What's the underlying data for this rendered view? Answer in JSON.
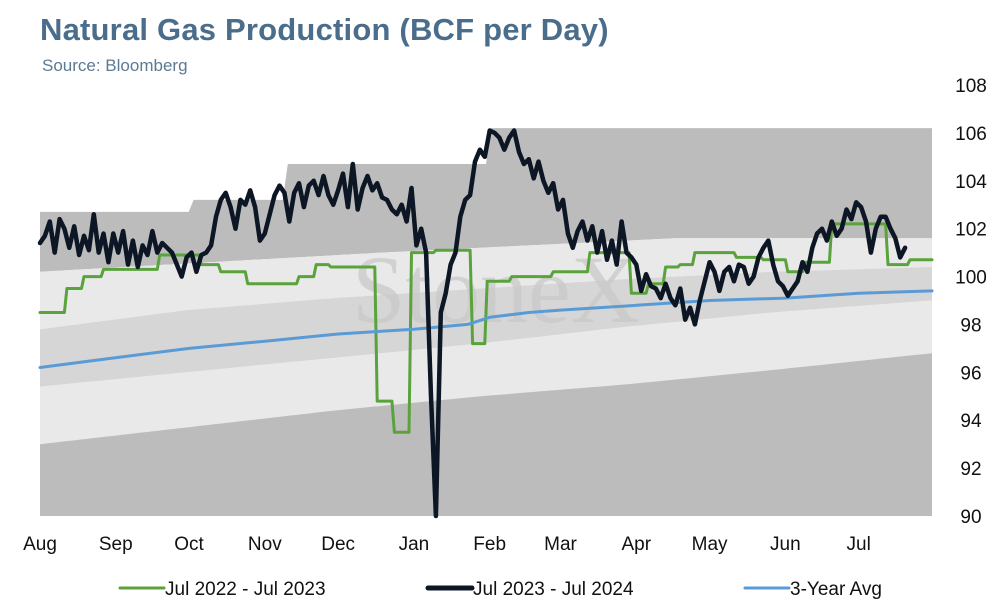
{
  "title": "Natural Gas Production (BCF per Day)",
  "subtitle": "Source: Bloomberg",
  "watermark": "StoneX",
  "colors": {
    "series_2022": "#5aa23c",
    "series_2023": "#0c1624",
    "avg": "#5b9bd5",
    "band_dark": "#bcbcbc",
    "band_mid": "#d6d6d6",
    "band_light": "#e9e9e9",
    "title": "#4a6d8c"
  },
  "chart_data": {
    "type": "line",
    "xlabel": "",
    "ylabel": "",
    "ylim": [
      90,
      108
    ],
    "yticks": [
      90,
      92,
      94,
      96,
      98,
      100,
      102,
      104,
      106,
      108
    ],
    "y_axis_side": "right",
    "xlim": [
      0,
      365
    ],
    "months": [
      "Aug",
      "Sep",
      "Oct",
      "Nov",
      "Dec",
      "Jan",
      "Feb",
      "Mar",
      "Apr",
      "May",
      "Jun",
      "Jul"
    ],
    "month_day": [
      0,
      31,
      61,
      92,
      122,
      153,
      184,
      213,
      244,
      274,
      305,
      335
    ],
    "legend_position": "bottom",
    "bands": {
      "max": [
        [
          0,
          102.7
        ],
        [
          60,
          102.7
        ],
        [
          61,
          103.2
        ],
        [
          100,
          103.2
        ],
        [
          101,
          104.7
        ],
        [
          183,
          104.7
        ],
        [
          184,
          106.2
        ],
        [
          365,
          106.2
        ]
      ],
      "q3": [
        [
          0,
          100.2
        ],
        [
          70,
          100.6
        ],
        [
          140,
          101.0
        ],
        [
          200,
          101.3
        ],
        [
          260,
          101.6
        ],
        [
          365,
          101.6
        ]
      ],
      "q2": [
        [
          0,
          97.8
        ],
        [
          60,
          98.6
        ],
        [
          120,
          99.1
        ],
        [
          180,
          99.5
        ],
        [
          240,
          99.9
        ],
        [
          300,
          100.2
        ],
        [
          365,
          100.4
        ]
      ],
      "q1": [
        [
          0,
          95.4
        ],
        [
          60,
          96.0
        ],
        [
          120,
          96.6
        ],
        [
          180,
          97.2
        ],
        [
          240,
          97.9
        ],
        [
          300,
          98.5
        ],
        [
          365,
          99.0
        ]
      ],
      "min": [
        [
          0,
          93.0
        ],
        [
          60,
          93.7
        ],
        [
          120,
          94.4
        ],
        [
          180,
          95.0
        ],
        [
          240,
          95.5
        ],
        [
          300,
          96.1
        ],
        [
          365,
          96.8
        ]
      ]
    },
    "series": [
      {
        "name": "Jul 2022 - Jul 2023",
        "step": true,
        "points": [
          [
            0,
            98.5
          ],
          [
            10,
            98.5
          ],
          [
            11,
            99.5
          ],
          [
            17,
            99.5
          ],
          [
            18,
            100.0
          ],
          [
            25,
            100.0
          ],
          [
            26,
            100.3
          ],
          [
            48,
            100.3
          ],
          [
            49,
            100.9
          ],
          [
            65,
            100.9
          ],
          [
            66,
            100.5
          ],
          [
            73,
            100.5
          ],
          [
            74,
            100.2
          ],
          [
            84,
            100.2
          ],
          [
            85,
            99.7
          ],
          [
            105,
            99.7
          ],
          [
            106,
            100.0
          ],
          [
            112,
            100.0
          ],
          [
            113,
            100.5
          ],
          [
            118,
            100.5
          ],
          [
            119,
            100.4
          ],
          [
            137,
            100.4
          ],
          [
            138,
            94.8
          ],
          [
            144,
            94.8
          ],
          [
            145,
            93.5
          ],
          [
            151,
            93.5
          ],
          [
            152,
            101.0
          ],
          [
            161,
            101.0
          ],
          [
            162,
            101.1
          ],
          [
            176,
            101.1
          ],
          [
            177,
            97.2
          ],
          [
            182,
            97.2
          ],
          [
            183,
            99.8
          ],
          [
            192,
            99.8
          ],
          [
            193,
            100.0
          ],
          [
            209,
            100.0
          ],
          [
            210,
            100.2
          ],
          [
            224,
            100.2
          ],
          [
            225,
            101.0
          ],
          [
            241,
            101.0
          ],
          [
            242,
            99.3
          ],
          [
            248,
            99.3
          ],
          [
            249,
            99.7
          ],
          [
            255,
            99.7
          ],
          [
            256,
            100.4
          ],
          [
            261,
            100.4
          ],
          [
            262,
            100.5
          ],
          [
            267,
            100.5
          ],
          [
            268,
            101.0
          ],
          [
            284,
            101.0
          ],
          [
            285,
            100.8
          ],
          [
            295,
            100.8
          ],
          [
            296,
            100.7
          ],
          [
            305,
            100.7
          ],
          [
            306,
            100.2
          ],
          [
            312,
            100.2
          ],
          [
            313,
            100.6
          ],
          [
            323,
            100.6
          ],
          [
            324,
            102.2
          ],
          [
            346,
            102.2
          ],
          [
            347,
            100.5
          ],
          [
            355,
            100.5
          ],
          [
            356,
            100.7
          ],
          [
            365,
            100.7
          ]
        ]
      },
      {
        "name": "Jul 2023 - Jul 2024",
        "step": false,
        "points": [
          [
            0,
            101.4
          ],
          [
            2,
            101.7
          ],
          [
            4,
            102.3
          ],
          [
            6,
            101.0
          ],
          [
            8,
            102.4
          ],
          [
            10,
            102.0
          ],
          [
            12,
            101.2
          ],
          [
            14,
            102.1
          ],
          [
            16,
            100.9
          ],
          [
            18,
            101.7
          ],
          [
            20,
            101.1
          ],
          [
            22,
            102.6
          ],
          [
            24,
            101.0
          ],
          [
            26,
            101.8
          ],
          [
            28,
            100.6
          ],
          [
            30,
            101.8
          ],
          [
            32,
            101.0
          ],
          [
            34,
            101.9
          ],
          [
            36,
            100.5
          ],
          [
            38,
            101.5
          ],
          [
            40,
            100.4
          ],
          [
            42,
            101.3
          ],
          [
            44,
            100.9
          ],
          [
            46,
            101.9
          ],
          [
            48,
            101.0
          ],
          [
            50,
            101.4
          ],
          [
            52,
            101.2
          ],
          [
            54,
            101.0
          ],
          [
            56,
            100.5
          ],
          [
            58,
            100.0
          ],
          [
            60,
            100.8
          ],
          [
            62,
            101.0
          ],
          [
            64,
            100.2
          ],
          [
            66,
            100.9
          ],
          [
            68,
            101.0
          ],
          [
            70,
            101.3
          ],
          [
            72,
            102.5
          ],
          [
            74,
            103.2
          ],
          [
            76,
            103.5
          ],
          [
            78,
            102.9
          ],
          [
            80,
            102.0
          ],
          [
            82,
            103.2
          ],
          [
            84,
            103.0
          ],
          [
            86,
            103.6
          ],
          [
            88,
            102.9
          ],
          [
            90,
            101.5
          ],
          [
            92,
            101.8
          ],
          [
            94,
            102.6
          ],
          [
            96,
            103.4
          ],
          [
            98,
            103.8
          ],
          [
            100,
            103.5
          ],
          [
            102,
            102.3
          ],
          [
            104,
            103.5
          ],
          [
            106,
            103.9
          ],
          [
            108,
            102.9
          ],
          [
            110,
            103.8
          ],
          [
            112,
            104.0
          ],
          [
            114,
            103.4
          ],
          [
            116,
            104.2
          ],
          [
            118,
            103.4
          ],
          [
            120,
            103.0
          ],
          [
            122,
            103.6
          ],
          [
            124,
            104.3
          ],
          [
            126,
            102.9
          ],
          [
            128,
            104.7
          ],
          [
            130,
            102.8
          ],
          [
            132,
            103.7
          ],
          [
            134,
            104.2
          ],
          [
            136,
            103.6
          ],
          [
            138,
            103.9
          ],
          [
            140,
            103.3
          ],
          [
            142,
            103.2
          ],
          [
            144,
            102.8
          ],
          [
            146,
            102.6
          ],
          [
            148,
            103.0
          ],
          [
            150,
            102.3
          ],
          [
            152,
            103.7
          ],
          [
            154,
            101.3
          ],
          [
            156,
            102.0
          ],
          [
            158,
            101.0
          ],
          [
            160,
            95.0
          ],
          [
            162,
            90.0
          ],
          [
            164,
            98.5
          ],
          [
            166,
            99.3
          ],
          [
            168,
            100.5
          ],
          [
            170,
            101.0
          ],
          [
            172,
            102.5
          ],
          [
            174,
            103.2
          ],
          [
            176,
            103.4
          ],
          [
            178,
            104.8
          ],
          [
            180,
            105.3
          ],
          [
            182,
            105.0
          ],
          [
            184,
            106.1
          ],
          [
            186,
            106.0
          ],
          [
            188,
            105.8
          ],
          [
            190,
            105.3
          ],
          [
            192,
            105.8
          ],
          [
            194,
            106.1
          ],
          [
            196,
            105.2
          ],
          [
            198,
            104.7
          ],
          [
            200,
            104.9
          ],
          [
            202,
            104.1
          ],
          [
            204,
            104.8
          ],
          [
            206,
            104.0
          ],
          [
            208,
            103.5
          ],
          [
            210,
            103.9
          ],
          [
            212,
            102.8
          ],
          [
            214,
            103.2
          ],
          [
            216,
            101.8
          ],
          [
            218,
            101.2
          ],
          [
            220,
            101.9
          ],
          [
            222,
            102.3
          ],
          [
            224,
            101.5
          ],
          [
            226,
            102.1
          ],
          [
            228,
            101.0
          ],
          [
            230,
            101.9
          ],
          [
            232,
            100.7
          ],
          [
            234,
            101.5
          ],
          [
            236,
            100.5
          ],
          [
            238,
            102.3
          ],
          [
            240,
            101.0
          ],
          [
            242,
            100.8
          ],
          [
            244,
            100.5
          ],
          [
            246,
            99.4
          ],
          [
            248,
            100.1
          ],
          [
            250,
            99.6
          ],
          [
            252,
            99.5
          ],
          [
            254,
            99.1
          ],
          [
            256,
            99.7
          ],
          [
            258,
            99.1
          ],
          [
            260,
            98.8
          ],
          [
            262,
            99.5
          ],
          [
            264,
            98.2
          ],
          [
            266,
            98.7
          ],
          [
            268,
            98.0
          ],
          [
            270,
            99.0
          ],
          [
            272,
            99.8
          ],
          [
            274,
            100.6
          ],
          [
            276,
            100.2
          ],
          [
            278,
            99.4
          ],
          [
            280,
            100.2
          ],
          [
            282,
            100.4
          ],
          [
            284,
            99.8
          ],
          [
            286,
            100.5
          ],
          [
            288,
            100.4
          ],
          [
            290,
            99.7
          ],
          [
            292,
            100.0
          ],
          [
            294,
            100.8
          ],
          [
            296,
            101.2
          ],
          [
            298,
            101.5
          ],
          [
            300,
            100.5
          ],
          [
            302,
            99.8
          ],
          [
            304,
            99.6
          ],
          [
            306,
            99.2
          ],
          [
            308,
            99.5
          ],
          [
            310,
            99.8
          ],
          [
            312,
            100.6
          ],
          [
            314,
            100.2
          ],
          [
            316,
            101.2
          ],
          [
            318,
            101.8
          ],
          [
            320,
            102.0
          ],
          [
            322,
            101.5
          ],
          [
            324,
            102.3
          ],
          [
            326,
            101.7
          ],
          [
            328,
            102.0
          ],
          [
            330,
            102.8
          ],
          [
            332,
            102.4
          ],
          [
            334,
            103.1
          ],
          [
            336,
            102.9
          ],
          [
            338,
            102.3
          ],
          [
            340,
            101.0
          ],
          [
            342,
            102.0
          ],
          [
            344,
            102.5
          ],
          [
            346,
            102.5
          ],
          [
            348,
            102.0
          ],
          [
            350,
            101.6
          ],
          [
            352,
            100.8
          ],
          [
            354,
            101.2
          ]
        ]
      },
      {
        "name": "3-Year Avg",
        "step": false,
        "points": [
          [
            0,
            96.2
          ],
          [
            30,
            96.6
          ],
          [
            61,
            97.0
          ],
          [
            92,
            97.3
          ],
          [
            122,
            97.6
          ],
          [
            153,
            97.8
          ],
          [
            175,
            98.0
          ],
          [
            184,
            98.3
          ],
          [
            200,
            98.5
          ],
          [
            213,
            98.6
          ],
          [
            244,
            98.8
          ],
          [
            274,
            99.0
          ],
          [
            305,
            99.1
          ],
          [
            335,
            99.3
          ],
          [
            365,
            99.4
          ]
        ]
      }
    ]
  }
}
